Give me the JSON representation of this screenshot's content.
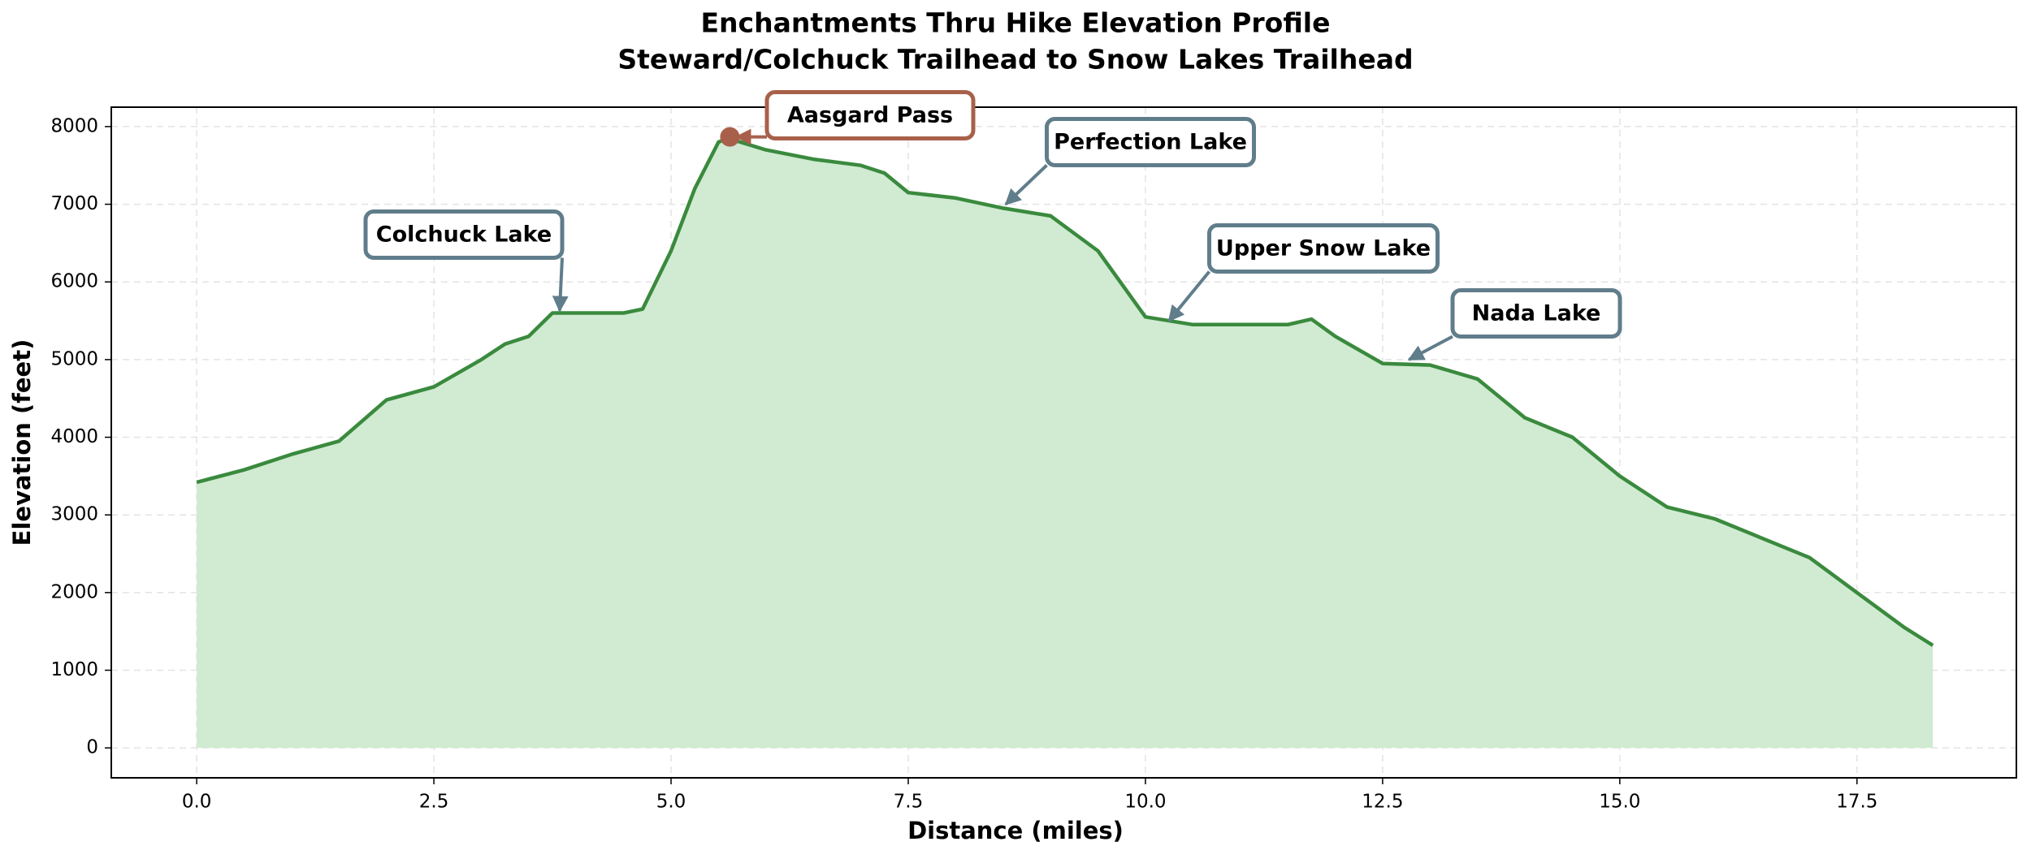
{
  "chart_data": {
    "type": "area",
    "title": "Enchantments Thru Hike Elevation Profile",
    "subtitle": "Steward/Colchuck Trailhead to Snow Lakes Trailhead",
    "xlabel": "Distance (miles)",
    "ylabel": "Elevation (feet)",
    "x": [
      0,
      0.5,
      1.0,
      1.5,
      2.0,
      2.5,
      3.0,
      3.25,
      3.5,
      3.75,
      4.0,
      4.5,
      4.7,
      5.0,
      5.25,
      5.5,
      5.6,
      6.0,
      6.5,
      7.0,
      7.25,
      7.5,
      8.0,
      8.5,
      9.0,
      9.5,
      10.0,
      10.5,
      11.0,
      11.5,
      11.75,
      12.0,
      12.5,
      13.0,
      13.5,
      14.0,
      14.5,
      15.0,
      15.5,
      16.0,
      16.5,
      17.0,
      17.5,
      18.0,
      18.3
    ],
    "series": [
      {
        "name": "Elevation",
        "color": "#3a8a3e",
        "fill": "#d0ebd1",
        "values": [
          3420,
          3580,
          3780,
          3950,
          4480,
          4650,
          5000,
          5200,
          5300,
          5600,
          5600,
          5600,
          5650,
          6400,
          7200,
          7800,
          7850,
          7700,
          7580,
          7500,
          7400,
          7150,
          7080,
          6950,
          6850,
          6400,
          5550,
          5450,
          5450,
          5450,
          5520,
          5300,
          4950,
          4930,
          4750,
          4250,
          4000,
          3500,
          3100,
          2950,
          2700,
          2450,
          2000,
          1550,
          1320
        ]
      }
    ],
    "xlim": [
      -0.9,
      19.18
    ],
    "ylim": [
      -385,
      8250
    ],
    "xticks": [
      {
        "value": 0,
        "label": "0.0"
      },
      2.5,
      {
        "value": 5,
        "label": "5.0"
      },
      7.5,
      {
        "value": 10,
        "label": "10.0"
      },
      12.5,
      {
        "value": 15,
        "label": "15.0"
      },
      17.5
    ],
    "yticks": [
      0,
      1000,
      2000,
      3000,
      4000,
      5000,
      6000,
      7000,
      8000
    ],
    "grid": true,
    "annotations": [
      {
        "text": "Colchuck Lake",
        "x": 3.86,
        "y": 5630,
        "color": "#607d8b"
      },
      {
        "text": "Aasgard Pass",
        "x": 5.62,
        "y": 7867,
        "color": "#a8604a",
        "marker": true
      },
      {
        "text": "Perfection Lake",
        "x": 8.46,
        "y": 7000,
        "color": "#607d8b"
      },
      {
        "text": "Upper Snow Lake",
        "x": 10.18,
        "y": 5500,
        "color": "#607d8b"
      },
      {
        "text": "Nada Lake",
        "x": 12.71,
        "y": 5000,
        "color": "#607d8b"
      }
    ]
  }
}
